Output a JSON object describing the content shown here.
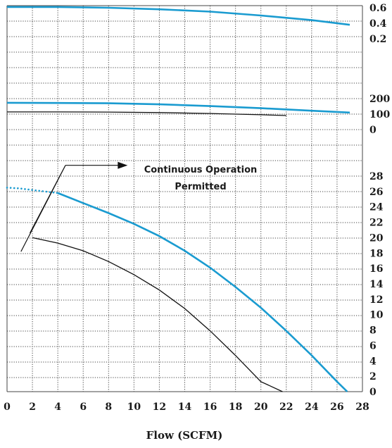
{
  "chart_data": {
    "type": "line",
    "xlabel": "Flow (SCFM)",
    "xlim": [
      0,
      28
    ],
    "x_ticks": [
      "0",
      "2",
      "4",
      "6",
      "8",
      "10",
      "12",
      "14",
      "16",
      "18",
      "20",
      "22",
      "24",
      "26",
      "28"
    ],
    "colors": {
      "blue": "#1a9bd0",
      "black": "#111111",
      "grid": "#444444"
    },
    "panels": [
      {
        "ylim": [
          0,
          0.7
        ],
        "y_ticks": [
          {
            "label": "0.6",
            "value": 0.6
          },
          {
            "label": "0.4",
            "value": 0.4
          },
          {
            "label": "0.2",
            "value": 0.2
          }
        ],
        "series": [
          {
            "color": "blue",
            "style": "solid",
            "points": [
              [
                0,
                0.61
              ],
              [
                4,
                0.61
              ],
              [
                8,
                0.6
              ],
              [
                12,
                0.58
              ],
              [
                16,
                0.55
              ],
              [
                20,
                0.5
              ],
              [
                24,
                0.44
              ],
              [
                27,
                0.38
              ]
            ]
          }
        ]
      },
      {
        "ylim": [
          -50,
          300
        ],
        "y_ticks": [
          {
            "label": "200",
            "value": 200
          },
          {
            "label": "100",
            "value": 100
          },
          {
            "label": "0",
            "value": 0
          }
        ],
        "series": [
          {
            "color": "blue",
            "style": "solid",
            "points": [
              [
                0,
                173
              ],
              [
                4,
                172
              ],
              [
                8,
                170
              ],
              [
                12,
                163
              ],
              [
                16,
                152
              ],
              [
                20,
                138
              ],
              [
                24,
                122
              ],
              [
                27,
                110
              ]
            ]
          },
          {
            "color": "black",
            "style": "solid",
            "points": [
              [
                0,
                114
              ],
              [
                4,
                114
              ],
              [
                8,
                113
              ],
              [
                12,
                110
              ],
              [
                16,
                104
              ],
              [
                20,
                96
              ],
              [
                22,
                91
              ]
            ]
          }
        ]
      },
      {
        "ylim": [
          0,
          28
        ],
        "y_ticks": [
          {
            "label": "28",
            "value": 28
          },
          {
            "label": "26",
            "value": 26
          },
          {
            "label": "24",
            "value": 24
          },
          {
            "label": "22",
            "value": 22
          },
          {
            "label": "20",
            "value": 20
          },
          {
            "label": "18",
            "value": 18
          },
          {
            "label": "16",
            "value": 16
          },
          {
            "label": "14",
            "value": 14
          },
          {
            "label": "12",
            "value": 12
          },
          {
            "label": "10",
            "value": 10
          },
          {
            "label": "8",
            "value": 8
          },
          {
            "label": "6",
            "value": 6
          },
          {
            "label": "4",
            "value": 4
          },
          {
            "label": "2",
            "value": 2
          },
          {
            "label": "0",
            "value": 0
          }
        ],
        "series": [
          {
            "color": "blue",
            "style": "dotted",
            "points": [
              [
                0,
                26.5
              ],
              [
                1,
                26.4
              ],
              [
                2,
                26.2
              ],
              [
                3,
                26.0
              ],
              [
                4,
                25.8
              ]
            ]
          },
          {
            "color": "blue",
            "style": "solid",
            "points": [
              [
                4,
                25.8
              ],
              [
                6,
                24.5
              ],
              [
                8,
                23.2
              ],
              [
                10,
                21.8
              ],
              [
                12,
                20.2
              ],
              [
                14,
                18.3
              ],
              [
                16,
                16.1
              ],
              [
                18,
                13.6
              ],
              [
                20,
                10.9
              ],
              [
                22,
                7.9
              ],
              [
                24,
                4.7
              ],
              [
                26,
                1.3
              ],
              [
                26.8,
                0
              ]
            ]
          },
          {
            "color": "black",
            "style": "solid",
            "points": [
              [
                2,
                20.0
              ],
              [
                4,
                19.3
              ],
              [
                6,
                18.3
              ],
              [
                8,
                16.9
              ],
              [
                10,
                15.2
              ],
              [
                12,
                13.2
              ],
              [
                14,
                10.8
              ],
              [
                16,
                7.9
              ],
              [
                18,
                4.7
              ],
              [
                20,
                1.3
              ],
              [
                21.7,
                0
              ]
            ]
          }
        ],
        "annotation": {
          "lines": [
            "Continuous Operation",
            "Permitted"
          ],
          "arrow_to_x": 9.5,
          "arrow_y": 29.4,
          "bracket_points": [
            [
              1.1,
              18.2
            ],
            [
              4.6,
              29.4
            ],
            [
              1.8,
              20.6
            ]
          ]
        }
      }
    ]
  }
}
